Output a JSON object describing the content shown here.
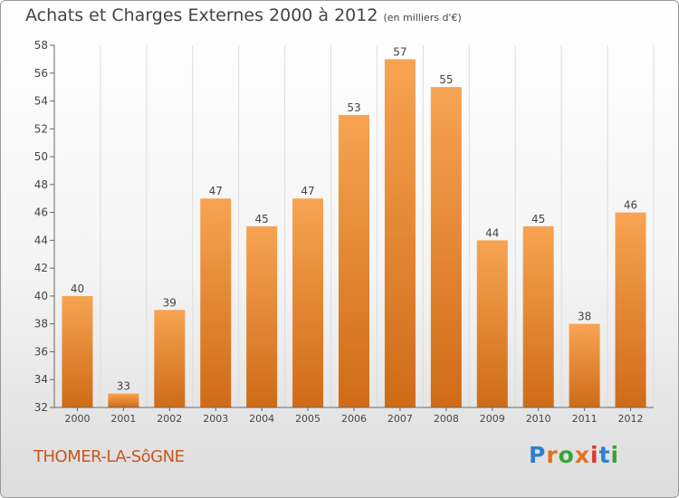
{
  "title": "Achats et Charges Externes 2000 à 2012",
  "subtitle": "(en milliers d'€)",
  "place": "THOMER-LA-SôGNE",
  "logo": {
    "text": "Proxiti",
    "letter_colors": [
      "#2f7fd0",
      "#e8711f",
      "#3aa336",
      "#e8711f",
      "#d63b2f",
      "#2f7fd0",
      "#3aa336"
    ]
  },
  "colors": {
    "bar_top": "#f7a452",
    "bar_bottom": "#cf6b17",
    "axis": "#666666",
    "grid": "#dddddd",
    "title": "#444444",
    "place": "#c8561f"
  },
  "chart_data": {
    "type": "bar",
    "categories": [
      "2000",
      "2001",
      "2002",
      "2003",
      "2004",
      "2005",
      "2006",
      "2007",
      "2008",
      "2009",
      "2010",
      "2011",
      "2012"
    ],
    "values": [
      40,
      33,
      39,
      47,
      45,
      47,
      53,
      57,
      55,
      44,
      45,
      38,
      46
    ],
    "ylim": [
      32,
      58
    ],
    "yticks": [
      32,
      34,
      36,
      38,
      40,
      42,
      44,
      46,
      48,
      50,
      52,
      54,
      56,
      58
    ],
    "grid": "vertical",
    "data_labels": true
  }
}
